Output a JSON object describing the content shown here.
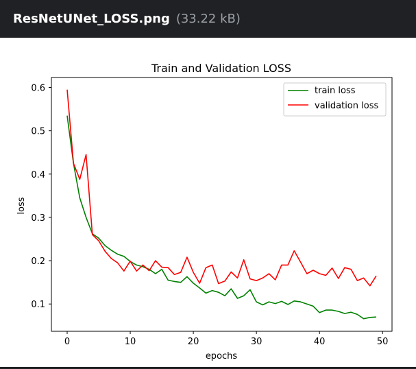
{
  "header": {
    "file_name": "ResNetUNet_LOSS.png",
    "file_size": "(33.22 kB)"
  },
  "chart_data": {
    "type": "line",
    "title": "Train and Validation LOSS",
    "xlabel": "epochs",
    "ylabel": "loss",
    "xlim": [
      -2.5,
      51.5
    ],
    "ylim": [
      0.037,
      0.623
    ],
    "xticks": [
      0,
      10,
      20,
      30,
      40,
      50
    ],
    "yticks": [
      0.1,
      0.2,
      0.3,
      0.4,
      0.5,
      0.6
    ],
    "grid": false,
    "legend_position": "top-right",
    "x": [
      0,
      1,
      2,
      3,
      4,
      5,
      6,
      7,
      8,
      9,
      10,
      11,
      12,
      13,
      14,
      15,
      16,
      17,
      18,
      19,
      20,
      21,
      22,
      23,
      24,
      25,
      26,
      27,
      28,
      29,
      30,
      31,
      32,
      33,
      34,
      35,
      36,
      37,
      38,
      39,
      40,
      41,
      42,
      43,
      44,
      45,
      46,
      47,
      48,
      49
    ],
    "series": [
      {
        "name": "train loss",
        "color": "#008000",
        "values": [
          0.535,
          0.425,
          0.345,
          0.3,
          0.262,
          0.252,
          0.235,
          0.224,
          0.215,
          0.21,
          0.198,
          0.19,
          0.186,
          0.18,
          0.17,
          0.18,
          0.155,
          0.152,
          0.15,
          0.163,
          0.148,
          0.137,
          0.125,
          0.131,
          0.127,
          0.119,
          0.135,
          0.113,
          0.119,
          0.133,
          0.105,
          0.098,
          0.105,
          0.101,
          0.106,
          0.099,
          0.107,
          0.105,
          0.1,
          0.095,
          0.08,
          0.086,
          0.086,
          0.083,
          0.078,
          0.081,
          0.076,
          0.066,
          0.069,
          0.07
        ]
      },
      {
        "name": "validation loss",
        "color": "#ff0000",
        "values": [
          0.595,
          0.425,
          0.388,
          0.445,
          0.26,
          0.246,
          0.222,
          0.205,
          0.195,
          0.176,
          0.199,
          0.176,
          0.19,
          0.177,
          0.2,
          0.185,
          0.184,
          0.168,
          0.173,
          0.208,
          0.173,
          0.148,
          0.184,
          0.19,
          0.147,
          0.153,
          0.174,
          0.16,
          0.202,
          0.158,
          0.154,
          0.16,
          0.17,
          0.156,
          0.19,
          0.19,
          0.223,
          0.197,
          0.17,
          0.178,
          0.17,
          0.166,
          0.183,
          0.159,
          0.184,
          0.18,
          0.154,
          0.16,
          0.142,
          0.165
        ]
      }
    ]
  }
}
